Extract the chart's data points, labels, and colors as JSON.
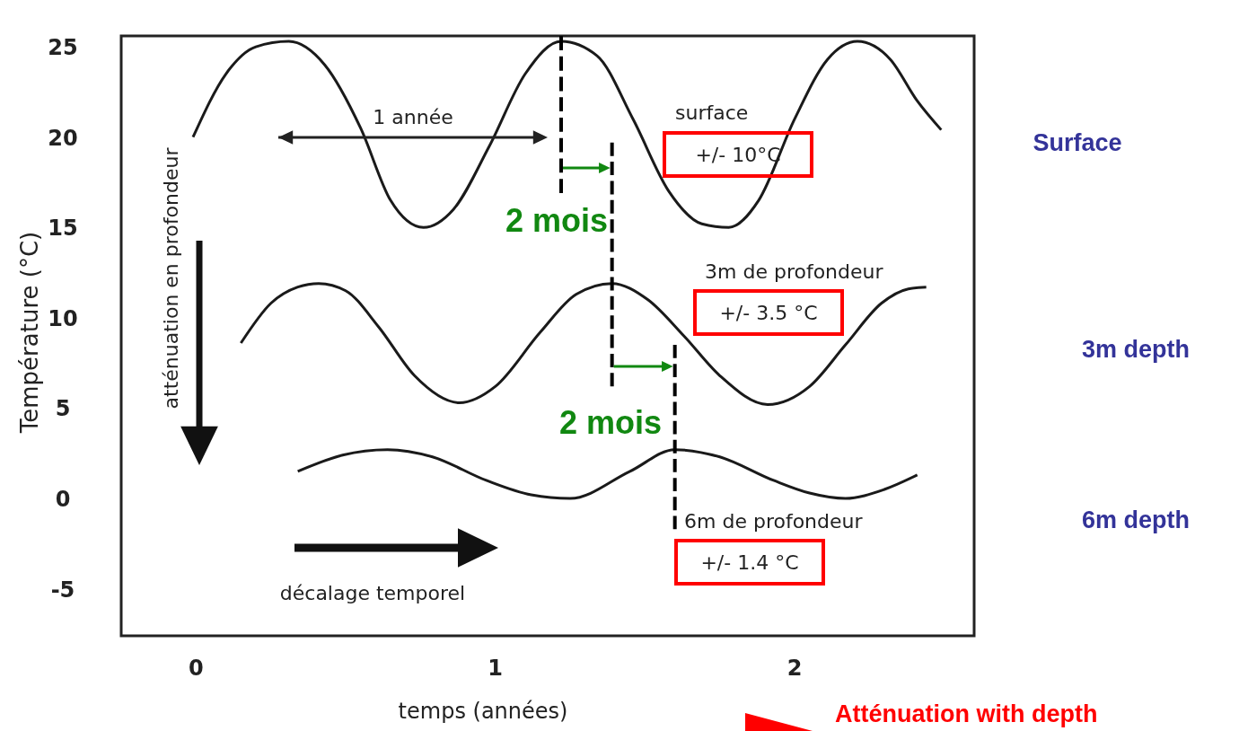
{
  "chart_data": {
    "type": "line",
    "xlabel": "temps (années)",
    "ylabel": "Température (°C)",
    "xlim": [
      -0.25,
      2.6
    ],
    "xticks": [
      0,
      1,
      2
    ],
    "ylim": [
      -7.6,
      25.6
    ],
    "yticks": [
      25,
      20,
      15,
      10,
      5,
      0,
      -5
    ],
    "grid": false,
    "series": [
      {
        "name": "surface",
        "color": "#1a1a1a",
        "x": [
          -0.01,
          0.1,
          0.2,
          0.31,
          0.43,
          0.55,
          0.65,
          0.76,
          0.86,
          0.98,
          1.1,
          1.22,
          1.34,
          1.46,
          1.58,
          1.69,
          1.78,
          1.88,
          2.0,
          2.11,
          2.21,
          2.32,
          2.41,
          2.49
        ],
        "values": [
          20,
          23.5,
          25,
          25.3,
          24,
          20.5,
          16.5,
          15,
          16,
          19.5,
          23.5,
          25.3,
          24.5,
          21,
          17,
          15.2,
          15,
          16.5,
          21,
          24.3,
          25.3,
          24.3,
          22,
          20.4
        ]
      },
      {
        "name": "3m de profondeur",
        "color": "#1a1a1a",
        "x": [
          0.15,
          0.25,
          0.34,
          0.41,
          0.5,
          0.61,
          0.73,
          0.88,
          1.0,
          1.15,
          1.27,
          1.39,
          1.51,
          1.63,
          1.75,
          1.91,
          2.05,
          2.17,
          2.29,
          2.38,
          2.44
        ],
        "values": [
          8.6,
          10.8,
          11.7,
          11.9,
          11.5,
          9.5,
          6.8,
          5.3,
          6.2,
          9.2,
          11.3,
          11.9,
          11,
          9,
          6.8,
          5.2,
          6.2,
          8.5,
          10.8,
          11.6,
          11.7
        ]
      },
      {
        "name": "6m de profondeur",
        "color": "#1a1a1a",
        "x": [
          0.34,
          0.49,
          0.64,
          0.79,
          0.97,
          1.12,
          1.25,
          1.45,
          1.6,
          1.75,
          1.93,
          2.05,
          2.17,
          2.3,
          2.41
        ],
        "values": [
          1.5,
          2.4,
          2.7,
          2.3,
          1.0,
          0.2,
          0,
          1.5,
          2.7,
          2.3,
          1.0,
          0.3,
          0,
          0.5,
          1.3
        ]
      },
      {
        "color": "#000000",
        "line_style": "dashed",
        "x": [
          1.22,
          1.22
        ],
        "values": [
          25.6,
          16.9
        ]
      },
      {
        "color": "#000000",
        "line_style": "dashed",
        "x": [
          1.39,
          1.39
        ],
        "values": [
          19.7,
          6.2
        ]
      },
      {
        "color": "#000000",
        "line_style": "dashed",
        "x": [
          1.6,
          1.6
        ],
        "values": [
          8.5,
          -1.7
        ]
      }
    ],
    "annotations": [
      "1 année",
      "2 mois",
      "2 mois",
      "+/- 10°C",
      "+/- 3.5 °C",
      "+/- 1.4 °C",
      "atténuation en profondeur",
      "décalage temporel",
      "Surface",
      "3m depth",
      "6m depth",
      "Atténuation with depth"
    ]
  }
}
